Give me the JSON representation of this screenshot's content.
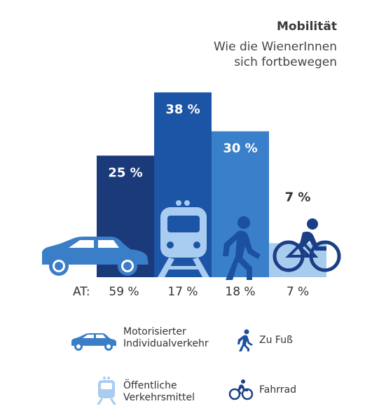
{
  "title": "Mobilität",
  "subtitle_lines": [
    "Wie die WienerInnen",
    "sich fortbewegen"
  ],
  "colors": {
    "car": "#1a3a7a",
    "transit": "#1d55a6",
    "walk": "#3a7fc9",
    "bike": "#a8ccee",
    "icon_car": "#3b7ec8",
    "icon_transit": "#a9cdf0",
    "icon_walk": "#1c50a0",
    "icon_bike": "#1b3f86"
  },
  "chart_data": {
    "type": "bar",
    "categories": [
      "Motorisierter Individualverkehr",
      "Öffentliche Verkehrsmittel",
      "Zu Fuß",
      "Fahrrad"
    ],
    "values": [
      25,
      38,
      30,
      7
    ],
    "value_labels": [
      "25 %",
      "38 %",
      "30 %",
      "7 %"
    ],
    "ylim": [
      0,
      40
    ],
    "at_prefix": "AT:",
    "at_values": [
      59,
      17,
      18,
      7
    ],
    "at_labels": [
      "59 %",
      "17 %",
      "18 %",
      "7 %"
    ]
  },
  "legend": [
    {
      "icon": "car-icon",
      "lines": [
        "Motorisierter",
        "Individualverkehr"
      ]
    },
    {
      "icon": "walk-icon",
      "lines": [
        "Zu Fuß"
      ]
    },
    {
      "icon": "train-icon",
      "lines": [
        "Öffentliche",
        "Verkehrsmittel"
      ]
    },
    {
      "icon": "bike-icon",
      "lines": [
        "Fahrrad"
      ]
    }
  ]
}
